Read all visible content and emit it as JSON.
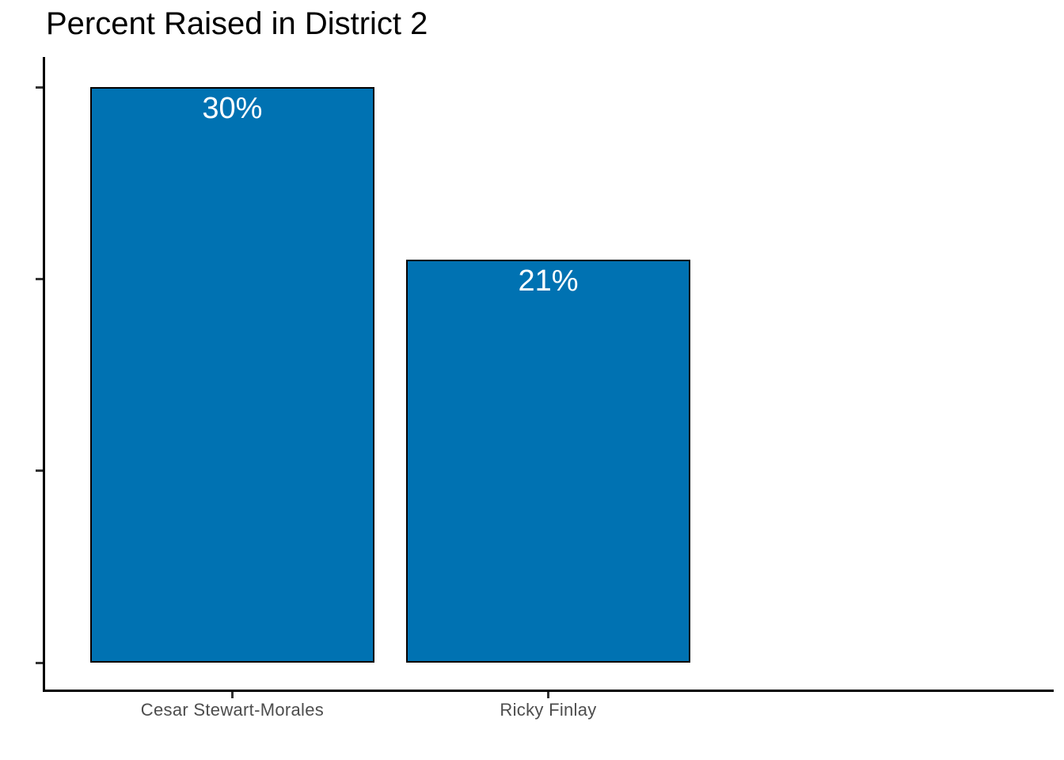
{
  "chart_data": {
    "type": "bar",
    "title": "Percent Raised in District 2",
    "categories": [
      "Cesar Stewart-Morales",
      "Ricky Finlay"
    ],
    "values": [
      30,
      21
    ],
    "bar_labels": [
      "30%",
      "21%"
    ],
    "xlabel": "",
    "ylabel": "",
    "ylim": [
      0,
      30
    ],
    "yticks": [
      0,
      10,
      20,
      30
    ],
    "ytick_labels_visible": false,
    "grid": false,
    "legend_position": "none",
    "colors": {
      "bar_fill": "#0072B2",
      "bar_border": "#000000",
      "bar_label_text": "#ffffff",
      "axis_line": "#000000",
      "tick_mark": "#333333",
      "axis_text": "#4d4d4d",
      "title_text": "#000000",
      "background": "#ffffff"
    }
  }
}
